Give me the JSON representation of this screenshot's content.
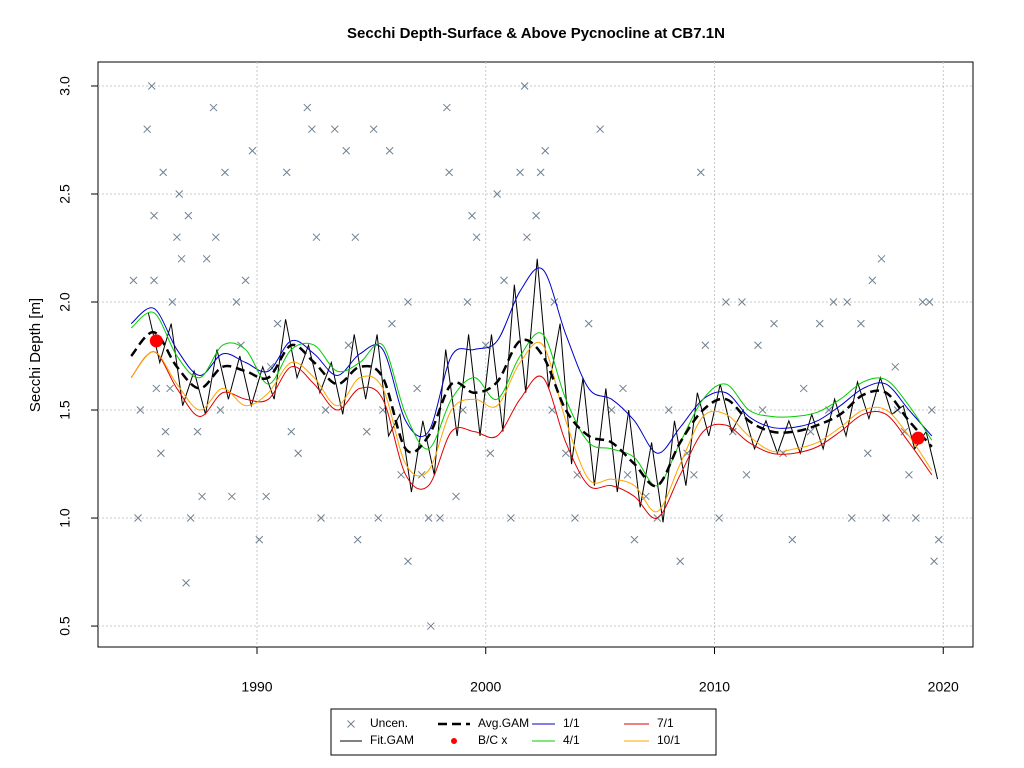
{
  "chart_data": {
    "type": "line",
    "title": "Secchi Depth-Surface & Above Pycnocline at CB7.1N",
    "y_label": "Secchi Depth [m]",
    "xlim": [
      1983.05,
      2021.3
    ],
    "ylim": [
      0.403,
      3.111
    ],
    "xticks": [
      1990,
      2000,
      2010,
      2020
    ],
    "yticks": [
      0.5,
      {
        "value": 1,
        "label": "1.0"
      },
      1.5,
      {
        "value": 2,
        "label": "2.0"
      },
      2.5,
      {
        "value": 3,
        "label": "3.0"
      }
    ],
    "grid": true,
    "x": [
      1984.5,
      1985.5,
      1986.5,
      1987.5,
      1988.5,
      1989.5,
      1990.5,
      1991.5,
      1992.5,
      1993.5,
      1994.5,
      1995.5,
      1996.5,
      1997.5,
      1998.5,
      1999.5,
      2000.5,
      2001.5,
      2002.5,
      2003.5,
      2004.5,
      2005.5,
      2006.5,
      2007.5,
      2008.5,
      2009.5,
      2010.5,
      2011.5,
      2012.5,
      2013.5,
      2014.5,
      2015.5,
      2016.5,
      2017.5,
      2018.5,
      2019.5
    ],
    "series": [
      {
        "name": "Uncen.",
        "color": "#708090",
        "marker": "x",
        "x": [
          1984.6,
          1984.8,
          1984.9,
          1985.2,
          1985.4,
          1985.5,
          1985.5,
          1985.6,
          1985.8,
          1985.9,
          1986.0,
          1986.3,
          1986.5,
          1986.6,
          1986.7,
          1986.9,
          1987.0,
          1987.1,
          1987.4,
          1987.6,
          1987.8,
          1988.1,
          1988.2,
          1988.6,
          1988.9,
          1989.1,
          1989.5,
          1989.8,
          1990.1,
          1990.4,
          1990.9,
          1991.3,
          1991.8,
          1992.2,
          1992.4,
          1992.6,
          1992.8,
          1993.4,
          1993.9,
          1994.3,
          1994.4,
          1994.8,
          1995.1,
          1995.3,
          1995.8,
          1995.9,
          1996.3,
          1996.6,
          1996.6,
          1997.0,
          1997.5,
          1997.6,
          1998.0,
          1998.3,
          1998.4,
          1998.7,
          1999.2,
          1999.4,
          1999.6,
          2000.0,
          2000.5,
          2000.8,
          2001.1,
          2001.5,
          2001.7,
          2001.8,
          2002.2,
          2002.4,
          2002.6,
          2003.0,
          2003.5,
          2003.9,
          2004.5,
          2005.0,
          2005.5,
          2006.0,
          2006.5,
          2007.0,
          2007.5,
          2008.0,
          2008.5,
          2009.1,
          2009.4,
          2009.6,
          2010.2,
          2010.5,
          2011.2,
          2011.4,
          2011.9,
          2012.6,
          2013.4,
          2013.9,
          2014.6,
          2015.2,
          2015.8,
          2016.0,
          2016.4,
          2016.9,
          2017.3,
          2017.5,
          2018.0,
          2018.5,
          2018.8,
          2019.1,
          2019.4,
          2019.6,
          2019.8,
          2019.5,
          1986.2,
          1988.4,
          1989.3,
          1990.6,
          1991.5,
          1993.0,
          1994.0,
          1995.5,
          1997.2,
          1999.0,
          2000.2,
          2002.9,
          2004.0,
          2006.2,
          2008.8,
          2010.8,
          2012.1,
          2013.0,
          2014.2,
          2015.0,
          2016.7,
          2017.9,
          2018.3
        ],
        "values": [
          2.1,
          1.0,
          1.5,
          2.8,
          3.0,
          2.4,
          2.1,
          1.6,
          1.3,
          2.6,
          1.4,
          2.0,
          2.3,
          2.5,
          2.2,
          0.7,
          2.4,
          1.0,
          1.4,
          1.1,
          2.2,
          2.9,
          2.3,
          2.6,
          1.1,
          2.0,
          2.1,
          2.7,
          0.9,
          1.1,
          1.9,
          2.6,
          1.3,
          2.9,
          2.8,
          2.3,
          1.0,
          2.8,
          2.7,
          2.3,
          0.9,
          1.4,
          2.8,
          1.0,
          2.7,
          1.9,
          1.2,
          2.0,
          0.8,
          1.6,
          1.0,
          0.5,
          1.0,
          2.9,
          2.6,
          1.1,
          2.0,
          2.4,
          2.3,
          1.8,
          2.5,
          2.1,
          1.0,
          2.6,
          3.0,
          2.3,
          2.4,
          2.6,
          2.7,
          2.0,
          1.3,
          1.0,
          1.9,
          2.8,
          1.5,
          1.6,
          0.9,
          1.1,
          1.0,
          1.5,
          0.8,
          1.2,
          2.6,
          1.8,
          1.0,
          2.0,
          2.0,
          1.2,
          1.8,
          1.9,
          0.9,
          1.6,
          1.9,
          2.0,
          2.0,
          1.0,
          1.9,
          2.1,
          2.2,
          1.0,
          1.5,
          1.2,
          1.0,
          2.0,
          2.0,
          0.8,
          0.9,
          1.5,
          1.6,
          1.5,
          1.8,
          1.7,
          1.4,
          1.5,
          1.8,
          1.5,
          1.2,
          1.5,
          1.3,
          1.5,
          1.2,
          1.2,
          1.3,
          1.4,
          1.5,
          1.3,
          1.4,
          1.5,
          1.3,
          1.7,
          1.4
        ]
      },
      {
        "name": "Fit.GAM",
        "color": "#000000",
        "line_width": 1,
        "x": [
          1985.25,
          1985.75,
          1986.25,
          1986.75,
          1987.25,
          1987.75,
          1988.25,
          1988.75,
          1989.25,
          1989.75,
          1990.25,
          1990.75,
          1991.25,
          1991.75,
          1992.25,
          1992.75,
          1993.25,
          1993.75,
          1994.25,
          1994.75,
          1995.25,
          1995.75,
          1996.25,
          1996.75,
          1997.25,
          1997.75,
          1998.25,
          1998.75,
          1999.25,
          1999.75,
          2000.25,
          2000.75,
          2001.25,
          2001.75,
          2002.25,
          2002.75,
          2003.25,
          2003.75,
          2004.25,
          2004.75,
          2005.25,
          2005.75,
          2006.25,
          2006.75,
          2007.25,
          2007.75,
          2008.25,
          2008.75,
          2009.25,
          2009.75,
          2010.25,
          2010.75,
          2011.25,
          2011.75,
          2012.25,
          2012.75,
          2013.25,
          2013.75,
          2014.25,
          2014.75,
          2015.25,
          2015.75,
          2016.25,
          2016.75,
          2017.25,
          2017.75,
          2018.25,
          2018.75,
          2019.25,
          2019.75
        ],
        "values": [
          1.95,
          1.72,
          1.9,
          1.52,
          1.68,
          1.48,
          1.78,
          1.55,
          1.75,
          1.52,
          1.7,
          1.55,
          1.92,
          1.65,
          1.8,
          1.58,
          1.72,
          1.48,
          1.85,
          1.55,
          1.85,
          1.38,
          1.48,
          1.12,
          1.45,
          1.2,
          1.78,
          1.38,
          1.85,
          1.38,
          1.85,
          1.4,
          2.08,
          1.58,
          2.2,
          1.6,
          1.9,
          1.25,
          1.65,
          1.15,
          1.6,
          1.12,
          1.5,
          1.05,
          1.35,
          0.98,
          1.45,
          1.15,
          1.58,
          1.38,
          1.62,
          1.4,
          1.5,
          1.32,
          1.45,
          1.3,
          1.45,
          1.3,
          1.48,
          1.32,
          1.55,
          1.38,
          1.63,
          1.46,
          1.65,
          1.48,
          1.52,
          1.32,
          1.4,
          1.18
        ]
      },
      {
        "name": "Avg.GAM",
        "color": "#000000",
        "line_width": 2.5,
        "dash": true,
        "values": [
          1.75,
          1.86,
          1.7,
          1.6,
          1.7,
          1.68,
          1.65,
          1.8,
          1.72,
          1.62,
          1.7,
          1.65,
          1.32,
          1.38,
          1.62,
          1.58,
          1.63,
          1.82,
          1.75,
          1.5,
          1.38,
          1.35,
          1.25,
          1.15,
          1.35,
          1.5,
          1.55,
          1.45,
          1.4,
          1.4,
          1.43,
          1.48,
          1.57,
          1.58,
          1.45,
          1.33
        ]
      },
      {
        "name": "B/C x",
        "color": "#ff0000",
        "marker": "dot",
        "x": [
          1985.6,
          2018.9
        ],
        "values": [
          1.82,
          1.37
        ]
      },
      {
        "name": "1/1",
        "color": "#0000cd",
        "line_width": 1,
        "values": [
          1.9,
          1.97,
          1.78,
          1.66,
          1.76,
          1.72,
          1.68,
          1.82,
          1.76,
          1.66,
          1.76,
          1.78,
          1.45,
          1.4,
          1.75,
          1.78,
          1.82,
          2.05,
          2.15,
          1.85,
          1.6,
          1.55,
          1.45,
          1.3,
          1.42,
          1.55,
          1.58,
          1.47,
          1.42,
          1.42,
          1.45,
          1.52,
          1.6,
          1.62,
          1.5,
          1.38
        ]
      },
      {
        "name": "4/1",
        "color": "#00cd00",
        "line_width": 1,
        "values": [
          1.88,
          1.95,
          1.75,
          1.65,
          1.8,
          1.78,
          1.62,
          1.78,
          1.8,
          1.68,
          1.72,
          1.8,
          1.48,
          1.32,
          1.55,
          1.65,
          1.55,
          1.75,
          1.85,
          1.55,
          1.35,
          1.32,
          1.28,
          1.15,
          1.35,
          1.55,
          1.62,
          1.5,
          1.47,
          1.47,
          1.49,
          1.55,
          1.63,
          1.64,
          1.52,
          1.36
        ]
      },
      {
        "name": "7/1",
        "color": "#e00000",
        "line_width": 1,
        "values": [
          1.65,
          1.77,
          1.6,
          1.47,
          1.58,
          1.55,
          1.55,
          1.7,
          1.62,
          1.5,
          1.6,
          1.55,
          1.2,
          1.15,
          1.4,
          1.4,
          1.38,
          1.55,
          1.65,
          1.35,
          1.15,
          1.15,
          1.1,
          1.0,
          1.2,
          1.4,
          1.43,
          1.35,
          1.3,
          1.3,
          1.33,
          1.4,
          1.48,
          1.48,
          1.35,
          1.2
        ]
      },
      {
        "name": "10/1",
        "color": "#ffa500",
        "line_width": 1,
        "values": [
          1.65,
          1.77,
          1.62,
          1.5,
          1.6,
          1.52,
          1.58,
          1.72,
          1.65,
          1.52,
          1.65,
          1.6,
          1.25,
          1.22,
          1.5,
          1.55,
          1.52,
          1.72,
          1.8,
          1.45,
          1.18,
          1.18,
          1.15,
          1.03,
          1.25,
          1.47,
          1.48,
          1.38,
          1.31,
          1.32,
          1.35,
          1.42,
          1.5,
          1.5,
          1.38,
          1.22
        ]
      }
    ]
  }
}
